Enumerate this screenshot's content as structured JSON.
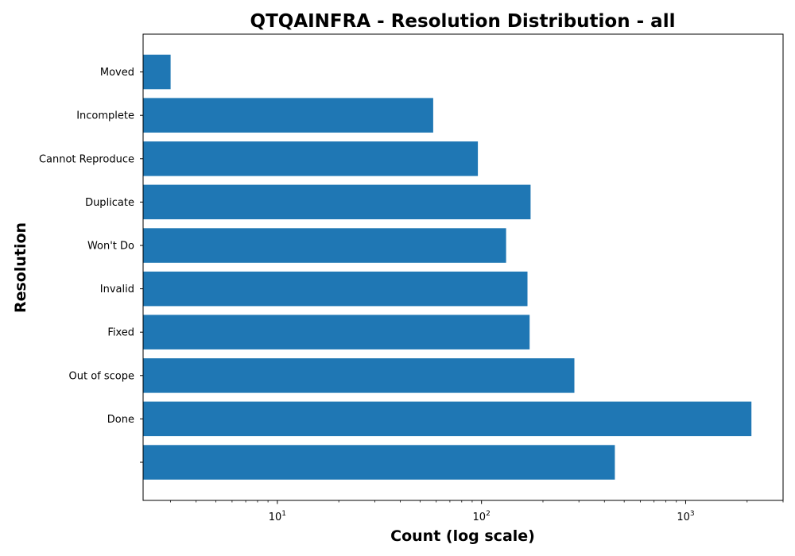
{
  "chart_data": {
    "type": "bar",
    "orientation": "horizontal",
    "title": "QTQAINFRA - Resolution Distribution - all",
    "xlabel": "Count (log scale)",
    "ylabel": "Resolution",
    "x_scale": "log",
    "xlim": [
      2.2,
      3000
    ],
    "x_ticks": [
      {
        "value": 10,
        "base": "10",
        "exp": "1"
      },
      {
        "value": 100,
        "base": "10",
        "exp": "2"
      },
      {
        "value": 1000,
        "base": "10",
        "exp": "3"
      }
    ],
    "categories": [
      "",
      "Done",
      "Out of scope",
      "Fixed",
      "Invalid",
      "Won't Do",
      "Duplicate",
      "Cannot Reproduce",
      "Incomplete",
      "Moved"
    ],
    "values": [
      450,
      2100,
      285,
      172,
      168,
      132,
      174,
      96,
      58,
      3
    ],
    "bar_color": "#1f77b4",
    "grid": false,
    "legend": "none"
  }
}
